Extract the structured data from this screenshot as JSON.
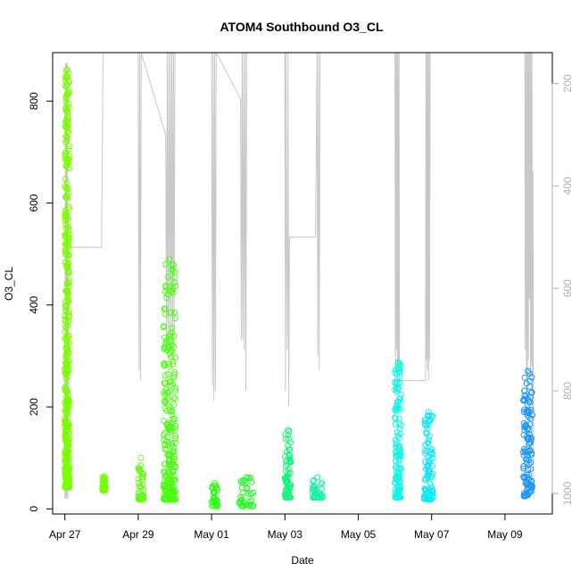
{
  "chart_data": {
    "type": "scatter",
    "title": "ATOM4 Southbound O3_CL",
    "xlabel": "Date",
    "ylabel": "O3_CL",
    "xlim": [
      "2016-04-26T16:00",
      "2016-05-10T07:00"
    ],
    "ylim": [
      -10,
      895
    ],
    "x_ticks": [
      "Apr 27",
      "Apr 29",
      "May 01",
      "May 03",
      "May 05",
      "May 07",
      "May 09"
    ],
    "x_tick_dates": [
      "2016-04-27",
      "2016-04-29",
      "2016-05-01",
      "2016-05-03",
      "2016-05-05",
      "2016-05-07",
      "2016-05-09"
    ],
    "y_ticks": [
      0,
      200,
      400,
      600,
      800
    ],
    "y2_ticks": [
      200,
      400,
      600,
      800,
      1000
    ],
    "y2_reversed": true,
    "y2_lim": [
      1040,
      140
    ],
    "colors": {
      "frame": "#000000",
      "altitude_line": "#c8c8c8",
      "right_axis": "#b0b0b0"
    },
    "point_clusters": [
      {
        "x_start": "2016-04-27T00:00",
        "x_end": "2016-04-27T03:00",
        "y_min": 42,
        "y_max": 862,
        "color": "#7cfc00"
      },
      {
        "x_start": "2016-04-28T00:30",
        "x_end": "2016-04-28T02:30",
        "y_min": 36,
        "y_max": 64,
        "color": "#76fc0a"
      },
      {
        "x_start": "2016-04-29T00:00",
        "x_end": "2016-04-29T03:30",
        "y_min": 18,
        "y_max": 100,
        "color": "#66fc14"
      },
      {
        "x_start": "2016-04-29T16:30",
        "x_end": "2016-04-30T00:30",
        "y_min": 18,
        "y_max": 490,
        "color": "#4cfc14"
      },
      {
        "x_start": "2016-05-01T00:00",
        "x_end": "2016-05-01T04:00",
        "y_min": 5,
        "y_max": 50,
        "color": "#2cfc14"
      },
      {
        "x_start": "2016-05-01T18:00",
        "x_end": "2016-05-02T04:00",
        "y_min": 5,
        "y_max": 62,
        "color": "#1cfc1c"
      },
      {
        "x_start": "2016-05-03T00:00",
        "x_end": "2016-05-03T04:00",
        "y_min": 22,
        "y_max": 155,
        "color": "#14f57a"
      },
      {
        "x_start": "2016-05-03T18:00",
        "x_end": "2016-05-04T00:30",
        "y_min": 22,
        "y_max": 62,
        "color": "#14f0a0"
      },
      {
        "x_start": "2016-05-06T00:00",
        "x_end": "2016-05-06T04:00",
        "y_min": 22,
        "y_max": 287,
        "color": "#14f5e6"
      },
      {
        "x_start": "2016-05-06T19:00",
        "x_end": "2016-05-07T01:00",
        "y_min": 18,
        "y_max": 190,
        "color": "#14e6f5"
      },
      {
        "x_start": "2016-05-09T12:00",
        "x_end": "2016-05-09T18:00",
        "y_min": 25,
        "y_max": 270,
        "color": "#1e96f5"
      }
    ],
    "altitude_profile": [
      [
        "2016-04-27T00:00",
        1010
      ],
      [
        "2016-04-27T00:20",
        160
      ],
      [
        "2016-04-27T00:40",
        1010
      ],
      [
        "2016-04-27T01:00",
        160
      ],
      [
        "2016-04-27T01:20",
        1010
      ],
      [
        "2016-04-27T01:40",
        160
      ],
      [
        "2016-04-27T02:00",
        1010
      ],
      [
        "2016-04-27T02:20",
        520
      ],
      [
        "2016-04-27T04:00",
        520
      ],
      [
        "2016-04-28T00:00",
        520
      ],
      [
        "2016-04-28T01:00",
        140
      ],
      [
        "2016-04-28T02:00",
        140
      ],
      [
        "2016-04-29T00:00",
        140
      ],
      [
        "2016-04-29T00:30",
        760
      ],
      [
        "2016-04-29T01:00",
        140
      ],
      [
        "2016-04-29T01:30",
        780
      ],
      [
        "2016-04-29T02:00",
        140
      ],
      [
        "2016-04-29T18:00",
        300
      ],
      [
        "2016-04-29T18:30",
        720
      ],
      [
        "2016-04-29T19:00",
        140
      ],
      [
        "2016-04-29T19:30",
        700
      ],
      [
        "2016-04-29T20:00",
        140
      ],
      [
        "2016-04-29T20:30",
        740
      ],
      [
        "2016-04-29T21:00",
        140
      ],
      [
        "2016-04-29T21:30",
        680
      ],
      [
        "2016-04-29T22:00",
        140
      ],
      [
        "2016-04-29T22:30",
        730
      ],
      [
        "2016-04-29T23:00",
        140
      ],
      [
        "2016-04-29T23:30",
        710
      ],
      [
        "2016-04-30T00:00",
        140
      ],
      [
        "2016-04-30T08:00",
        140
      ],
      [
        "2016-05-01T00:00",
        140
      ],
      [
        "2016-05-01T00:30",
        790
      ],
      [
        "2016-05-01T01:00",
        140
      ],
      [
        "2016-05-01T01:30",
        820
      ],
      [
        "2016-05-01T02:00",
        140
      ],
      [
        "2016-05-01T02:30",
        800
      ],
      [
        "2016-05-01T03:00",
        140
      ],
      [
        "2016-05-01T19:00",
        230
      ],
      [
        "2016-05-01T19:30",
        700
      ],
      [
        "2016-05-01T20:00",
        140
      ],
      [
        "2016-05-01T20:30",
        700
      ],
      [
        "2016-05-01T21:00",
        140
      ],
      [
        "2016-05-01T21:30",
        720
      ],
      [
        "2016-05-01T22:00",
        140
      ],
      [
        "2016-05-01T22:30",
        800
      ],
      [
        "2016-05-01T23:00",
        140
      ],
      [
        "2016-05-03T00:00",
        140
      ],
      [
        "2016-05-03T00:20",
        800
      ],
      [
        "2016-05-03T00:40",
        140
      ],
      [
        "2016-05-03T01:00",
        500
      ],
      [
        "2016-05-03T01:30",
        720
      ],
      [
        "2016-05-03T02:00",
        140
      ],
      [
        "2016-05-03T02:30",
        830
      ],
      [
        "2016-05-03T03:00",
        500
      ],
      [
        "2016-05-03T04:00",
        500
      ],
      [
        "2016-05-03T20:00",
        500
      ],
      [
        "2016-05-03T21:00",
        140
      ],
      [
        "2016-05-03T21:30",
        730
      ],
      [
        "2016-05-03T22:00",
        140
      ],
      [
        "2016-05-03T22:30",
        760
      ],
      [
        "2016-05-03T23:00",
        140
      ],
      [
        "2016-05-06T00:00",
        140
      ],
      [
        "2016-05-06T00:20",
        800
      ],
      [
        "2016-05-06T00:40",
        140
      ],
      [
        "2016-05-06T01:00",
        720
      ],
      [
        "2016-05-06T01:20",
        140
      ],
      [
        "2016-05-06T01:40",
        800
      ],
      [
        "2016-05-06T02:00",
        140
      ],
      [
        "2016-05-06T02:20",
        760
      ],
      [
        "2016-05-06T02:40",
        140
      ],
      [
        "2016-05-06T03:00",
        780
      ],
      [
        "2016-05-06T04:00",
        780
      ],
      [
        "2016-05-06T20:00",
        780
      ],
      [
        "2016-05-06T20:20",
        140
      ],
      [
        "2016-05-06T20:40",
        740
      ],
      [
        "2016-05-06T21:00",
        140
      ],
      [
        "2016-05-06T21:20",
        760
      ],
      [
        "2016-05-06T21:40",
        140
      ],
      [
        "2016-05-06T22:00",
        780
      ],
      [
        "2016-05-06T22:20",
        140
      ],
      [
        "2016-05-06T22:40",
        740
      ],
      [
        "2016-05-06T23:00",
        140
      ],
      [
        "2016-05-09T13:00",
        140
      ],
      [
        "2016-05-09T13:20",
        720
      ],
      [
        "2016-05-09T13:40",
        140
      ],
      [
        "2016-05-09T14:00",
        760
      ],
      [
        "2016-05-09T14:20",
        140
      ],
      [
        "2016-05-09T14:40",
        780
      ],
      [
        "2016-05-09T15:00",
        140
      ],
      [
        "2016-05-09T15:20",
        740
      ],
      [
        "2016-05-09T15:40",
        140
      ],
      [
        "2016-05-09T16:00",
        620
      ],
      [
        "2016-05-09T16:20",
        140
      ],
      [
        "2016-05-09T16:40",
        770
      ],
      [
        "2016-05-09T17:00",
        140
      ],
      [
        "2016-05-09T17:20",
        750
      ],
      [
        "2016-05-09T17:40",
        140
      ],
      [
        "2016-05-09T18:00",
        840
      ],
      [
        "2016-05-09T18:20",
        370
      ],
      [
        "2016-05-09T18:40",
        1010
      ]
    ]
  }
}
